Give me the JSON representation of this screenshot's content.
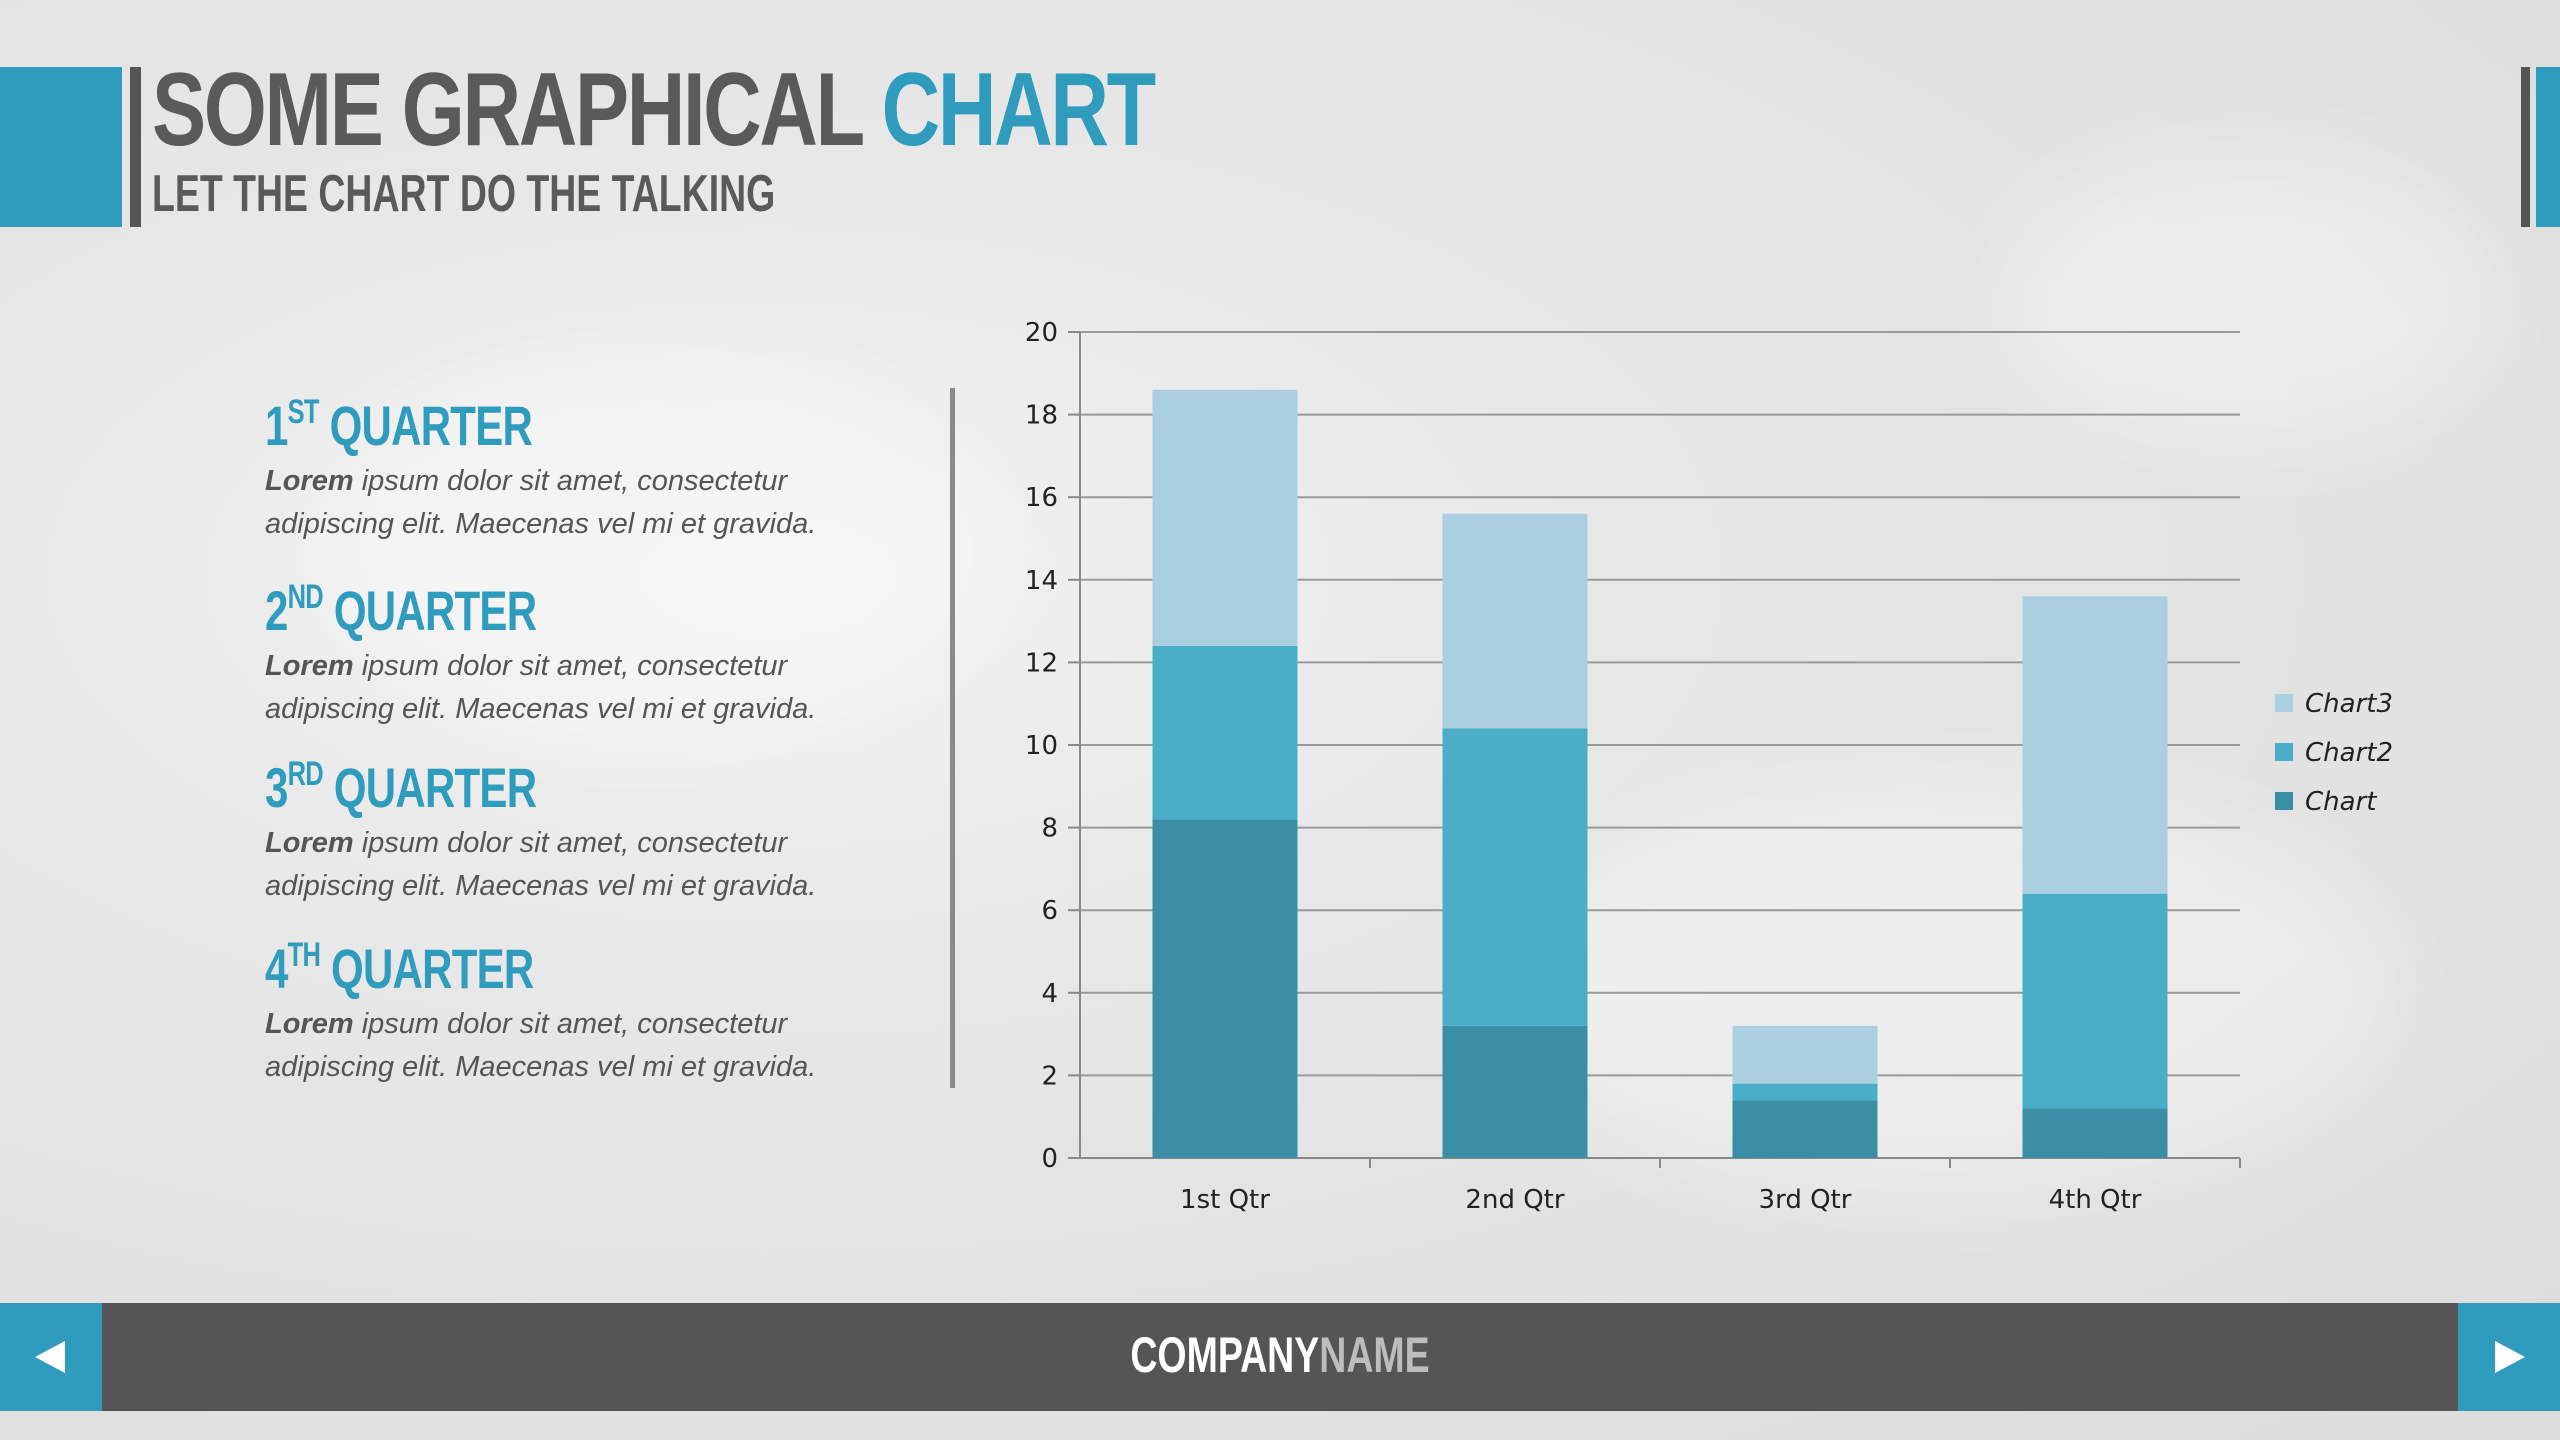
{
  "header": {
    "title_main": "Some Graphical ",
    "title_accent": "Chart",
    "subtitle": "Let the chart do the talking"
  },
  "quarters": [
    {
      "number": "1",
      "suffix": "st",
      "word": " Quarter",
      "lead": "Lorem",
      "body": " ipsum dolor sit amet, consectetur\nadipiscing elit. Maecenas vel mi et gravida."
    },
    {
      "number": "2",
      "suffix": "nd",
      "word": " Quarter",
      "lead": "Lorem",
      "body": " ipsum dolor sit amet, consectetur\nadipiscing elit. Maecenas vel mi et gravida."
    },
    {
      "number": "3",
      "suffix": "rd",
      "word": " Quarter",
      "lead": "Lorem",
      "body": " ipsum dolor sit amet, consectetur\nadipiscing elit. Maecenas vel mi et gravida."
    },
    {
      "number": "4",
      "suffix": "th",
      "word": " Quarter",
      "lead": "Lorem",
      "body": " ipsum dolor sit amet, consectetur\nadipiscing elit. Maecenas vel mi et gravida."
    }
  ],
  "chart_data": {
    "type": "bar",
    "stacked": true,
    "categories": [
      "1st Qtr",
      "2nd Qtr",
      "3rd Qtr",
      "4th Qtr"
    ],
    "series": [
      {
        "name": "Chart",
        "color": "#3a8fa6",
        "values": [
          8.2,
          3.2,
          1.4,
          1.2
        ]
      },
      {
        "name": "Chart2",
        "color": "#4aaec9",
        "values": [
          4.2,
          7.2,
          0.4,
          5.2
        ]
      },
      {
        "name": "Chart3",
        "color": "#a9cfe0",
        "values": [
          6.2,
          5.2,
          1.4,
          7.2
        ]
      }
    ],
    "ylim": [
      0,
      20
    ],
    "yticks": [
      0,
      2,
      4,
      6,
      8,
      10,
      12,
      14,
      16,
      18,
      20
    ],
    "grid": true,
    "legend": "right"
  },
  "footer": {
    "company_bold": "Company",
    "company_light": "Name"
  },
  "nav": {
    "prev_icon": "triangle-left-icon",
    "next_icon": "triangle-right-icon"
  }
}
